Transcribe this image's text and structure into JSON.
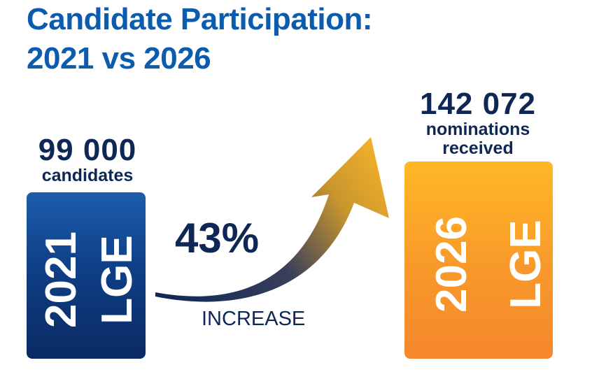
{
  "title": {
    "line1": "Candidate Participation:",
    "line2": "2021 vs 2026"
  },
  "colors": {
    "title": "#0b5cae",
    "text_dark": "#0e2754",
    "box_2021": "#0f3f86",
    "box_2026": "#f8982b"
  },
  "left": {
    "value": "99 000",
    "label": "candidates",
    "year": "2021",
    "event": "LGE"
  },
  "right": {
    "value": "142 072",
    "label_line1": "nominations",
    "label_line2": "received",
    "year": "2026",
    "event": "LGE"
  },
  "change": {
    "percent": "43%",
    "label": "INCREASE"
  },
  "chart_data": {
    "type": "bar",
    "title": "Candidate Participation: 2021 vs 2026",
    "categories": [
      "2021 LGE",
      "2026 LGE"
    ],
    "values": [
      99000,
      142072
    ],
    "value_labels": [
      "99 000",
      "142 072"
    ],
    "units": [
      "candidates",
      "nominations received"
    ],
    "change": "43% INCREASE"
  }
}
